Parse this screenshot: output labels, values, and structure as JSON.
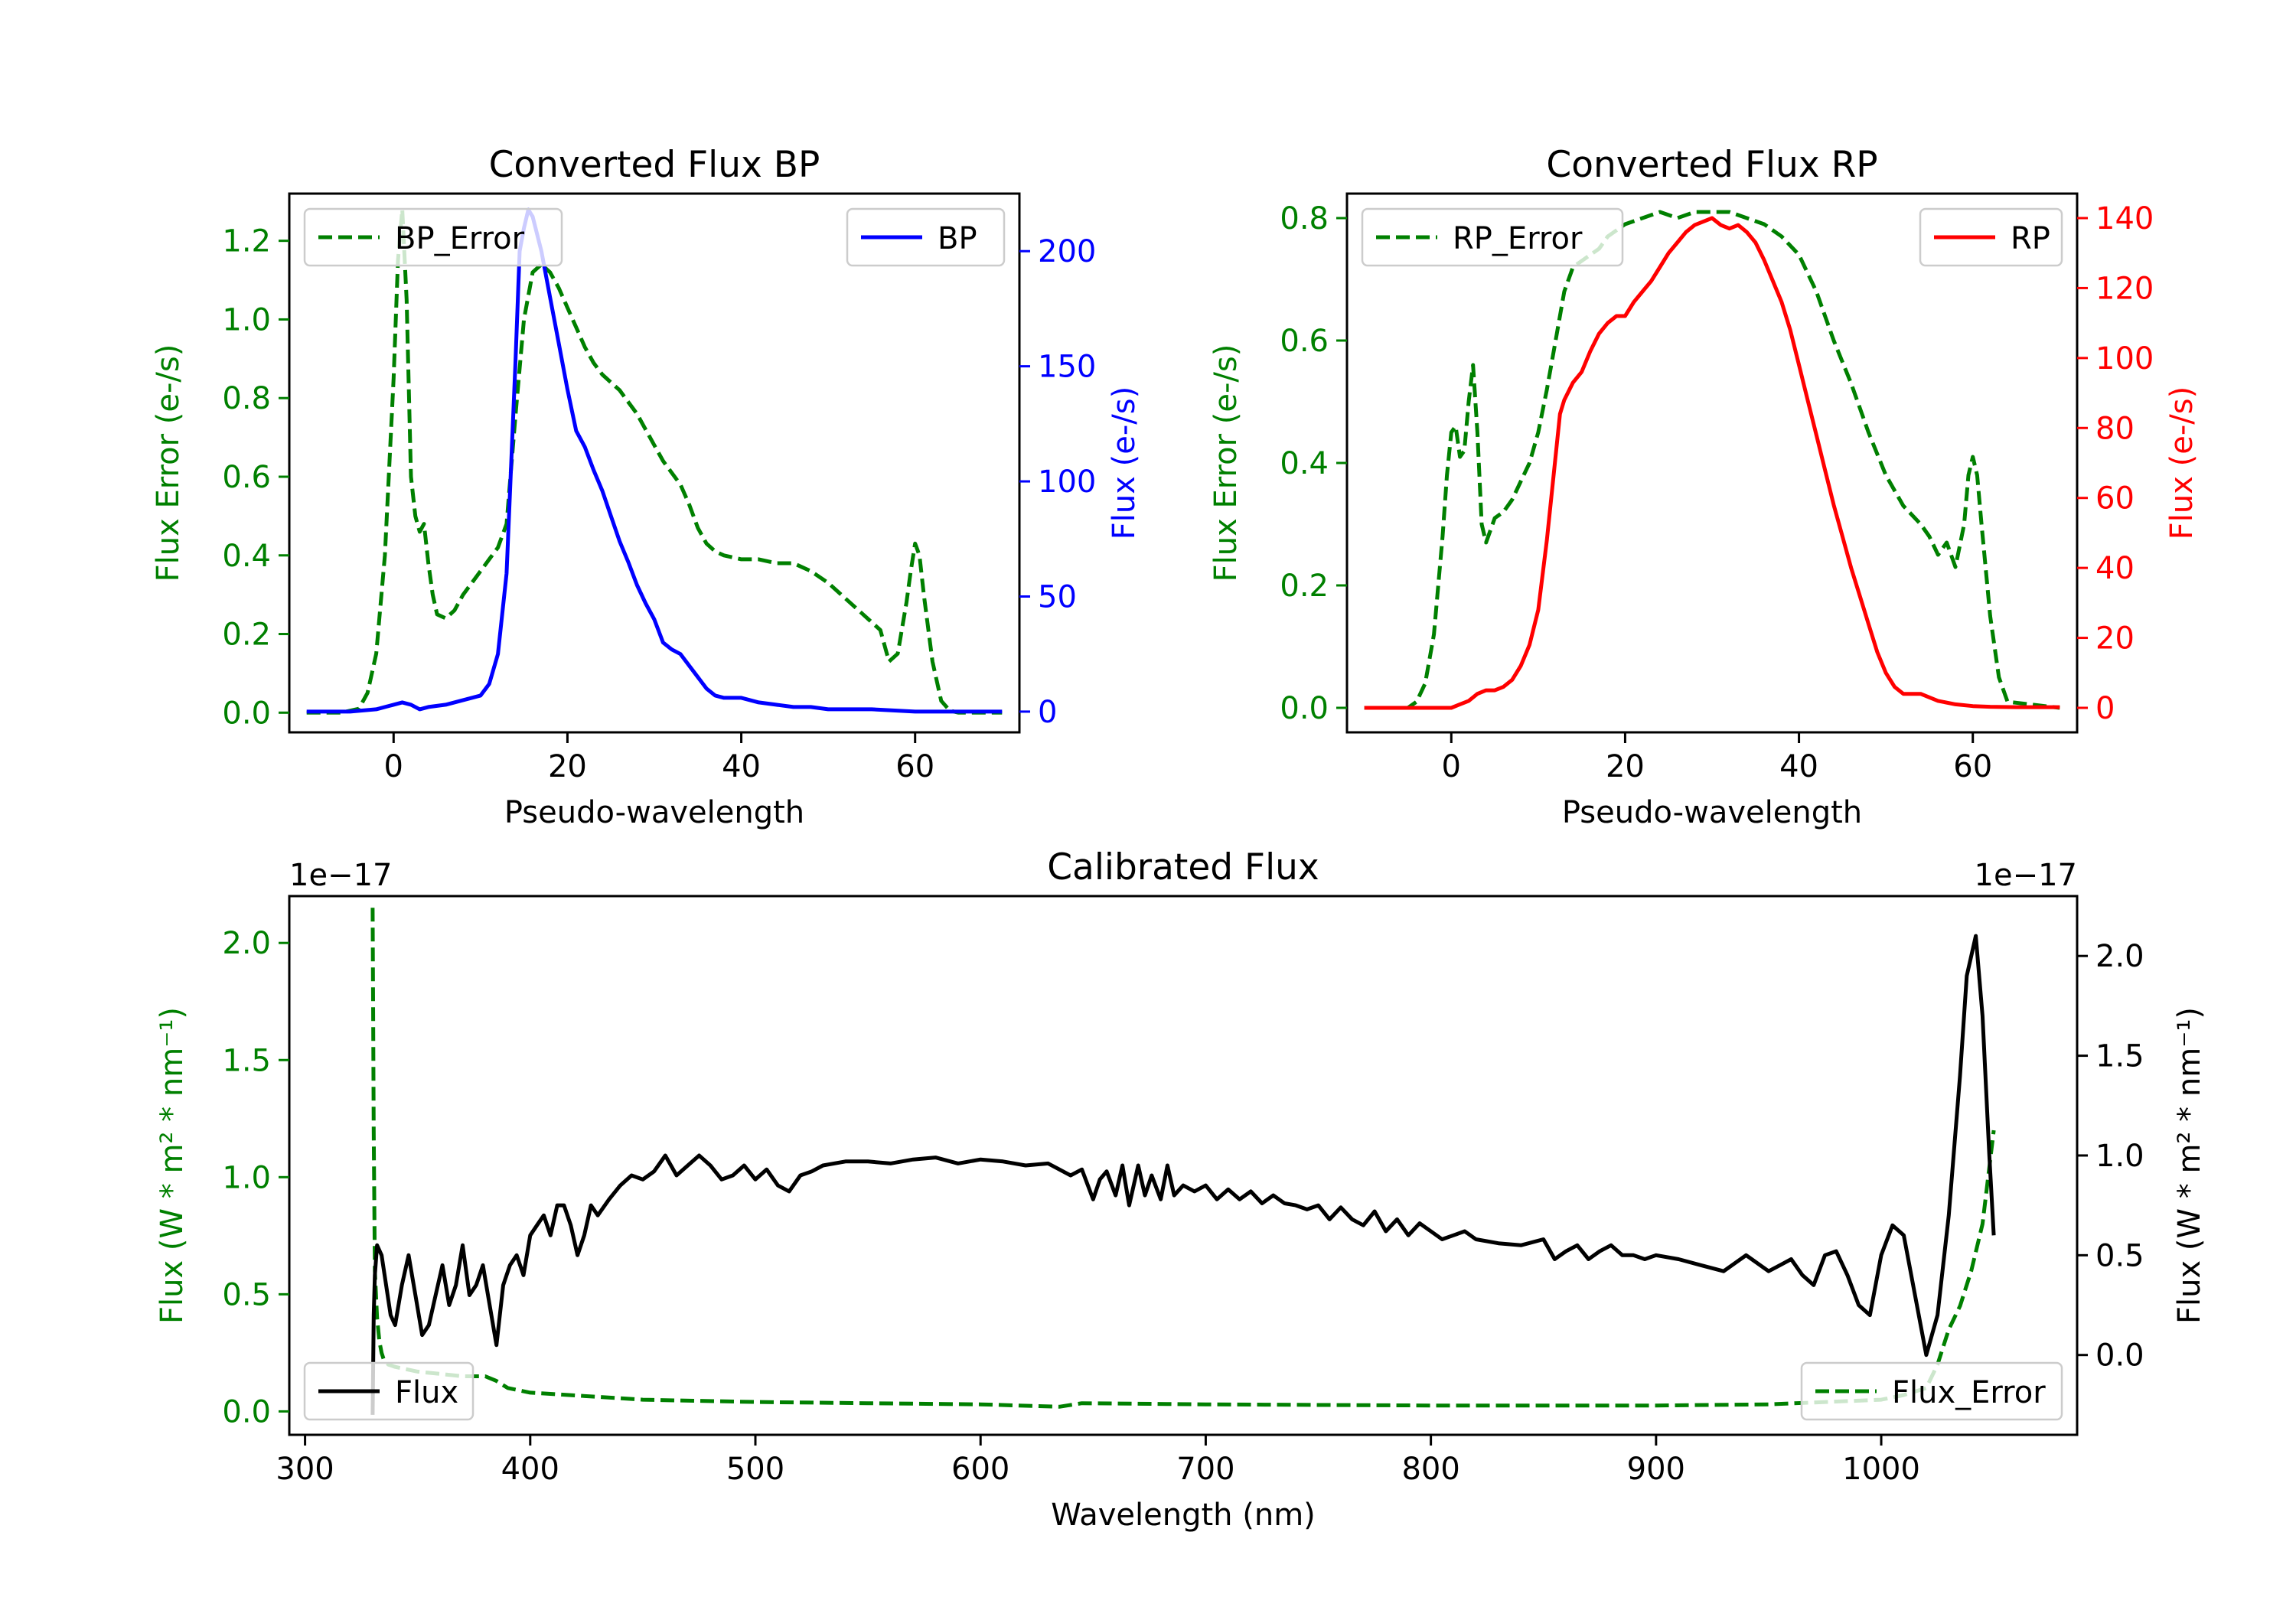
{
  "chart_data": [
    {
      "type": "line",
      "title": "Converted Flux BP",
      "xlabel": "Pseudo-wavelength",
      "ylabel_left": "Flux Error (e-/s)",
      "ylabel_right": "Flux (e-/s)",
      "xlim": [
        -12,
        72
      ],
      "ylim_left": [
        -0.05,
        1.32
      ],
      "ylim_right": [
        -9,
        225
      ],
      "xticks": [
        "0",
        "20",
        "40",
        "60"
      ],
      "yticks_left": [
        "0.0",
        "0.2",
        "0.4",
        "0.6",
        "0.8",
        "1.0",
        "1.2"
      ],
      "yticks_right": [
        "0",
        "50",
        "100",
        "150",
        "200"
      ],
      "legend_left": "BP_Error",
      "legend_right": "BP",
      "colors": {
        "error": "#008000",
        "flux": "#0000ff",
        "left_axis": "#008000",
        "right_axis": "#0000ff"
      },
      "series": [
        {
          "name": "BP_Error",
          "axis": "left",
          "style": "dashed",
          "x": [
            -10,
            -6,
            -4,
            -3,
            -2,
            -1,
            0,
            0.5,
            1,
            1.5,
            2,
            2.5,
            3,
            3.5,
            4,
            4.5,
            5,
            6,
            7,
            8,
            9,
            10,
            11,
            12,
            13,
            14,
            15,
            16,
            17,
            18,
            19,
            20,
            21,
            22,
            23,
            24,
            25,
            26,
            27,
            28,
            29,
            30,
            31,
            32,
            33,
            34,
            35,
            36,
            37,
            38,
            40,
            42,
            44,
            46,
            47,
            48,
            50,
            52,
            54,
            56,
            57,
            58,
            59,
            59.5,
            60,
            60.5,
            61,
            62,
            63,
            64,
            65,
            70
          ],
          "y": [
            0.0,
            0.0,
            0.01,
            0.05,
            0.15,
            0.4,
            0.85,
            1.15,
            1.28,
            1.05,
            0.6,
            0.5,
            0.46,
            0.48,
            0.38,
            0.3,
            0.25,
            0.24,
            0.26,
            0.3,
            0.33,
            0.36,
            0.39,
            0.42,
            0.48,
            0.75,
            1.0,
            1.12,
            1.14,
            1.12,
            1.08,
            1.03,
            0.98,
            0.93,
            0.89,
            0.86,
            0.84,
            0.82,
            0.79,
            0.76,
            0.72,
            0.68,
            0.64,
            0.61,
            0.58,
            0.53,
            0.47,
            0.43,
            0.41,
            0.4,
            0.39,
            0.39,
            0.38,
            0.38,
            0.37,
            0.36,
            0.33,
            0.29,
            0.25,
            0.21,
            0.13,
            0.15,
            0.28,
            0.36,
            0.43,
            0.4,
            0.3,
            0.13,
            0.03,
            0.005,
            0.0,
            0.0
          ]
        },
        {
          "name": "BP",
          "axis": "right",
          "style": "solid",
          "x": [
            -10,
            -5,
            -2,
            0,
            1,
            2,
            3,
            4,
            6,
            8,
            10,
            11,
            12,
            13,
            14,
            14.5,
            15,
            15.5,
            16,
            17,
            18,
            19,
            20,
            21,
            22,
            23,
            24,
            25,
            26,
            27,
            28,
            29,
            30,
            31,
            32,
            33,
            34,
            35,
            36,
            37,
            38,
            40,
            42,
            44,
            46,
            48,
            50,
            55,
            60,
            65,
            70
          ],
          "y": [
            0,
            0,
            1,
            3,
            4,
            3,
            1,
            2,
            3,
            5,
            7,
            12,
            25,
            60,
            150,
            200,
            210,
            218,
            215,
            200,
            180,
            160,
            140,
            122,
            115,
            105,
            96,
            85,
            74,
            65,
            55,
            47,
            40,
            30,
            27,
            25,
            20,
            15,
            10,
            7,
            6,
            6,
            4,
            3,
            2,
            2,
            1,
            1,
            0,
            0,
            0
          ]
        }
      ]
    },
    {
      "type": "line",
      "title": "Converted Flux RP",
      "xlabel": "Pseudo-wavelength",
      "ylabel_left": "Flux Error (e-/s)",
      "ylabel_right": "Flux (e-/s)",
      "xlim": [
        -12,
        72
      ],
      "ylim_left": [
        -0.04,
        0.84
      ],
      "ylim_right": [
        -7,
        147
      ],
      "xticks": [
        "0",
        "20",
        "40",
        "60"
      ],
      "yticks_left": [
        "0.0",
        "0.2",
        "0.4",
        "0.6",
        "0.8"
      ],
      "yticks_right": [
        "0",
        "20",
        "40",
        "60",
        "80",
        "100",
        "120",
        "140"
      ],
      "legend_left": "RP_Error",
      "legend_right": "RP",
      "colors": {
        "error": "#008000",
        "flux": "#ff0000",
        "left_axis": "#008000",
        "right_axis": "#ff0000"
      },
      "series": [
        {
          "name": "RP_Error",
          "axis": "left",
          "style": "dashed",
          "x": [
            -10,
            -5,
            -4,
            -3,
            -2,
            -1,
            -0.5,
            0,
            0.5,
            1,
            1.5,
            2,
            2.5,
            3,
            3.5,
            4,
            5,
            6,
            7,
            8,
            9,
            10,
            11,
            12,
            13,
            14,
            15,
            16,
            17,
            18,
            19,
            20,
            22,
            24,
            26,
            28,
            30,
            32,
            34,
            36,
            38,
            40,
            42,
            44,
            46,
            48,
            50,
            52,
            54,
            55,
            56,
            57,
            58,
            59,
            59.5,
            60,
            60.5,
            61,
            62,
            63,
            64,
            70
          ],
          "y": [
            0.0,
            0.0,
            0.01,
            0.04,
            0.12,
            0.28,
            0.38,
            0.45,
            0.46,
            0.41,
            0.42,
            0.5,
            0.56,
            0.45,
            0.3,
            0.27,
            0.31,
            0.32,
            0.34,
            0.37,
            0.4,
            0.45,
            0.52,
            0.6,
            0.68,
            0.72,
            0.73,
            0.74,
            0.75,
            0.77,
            0.78,
            0.79,
            0.8,
            0.81,
            0.8,
            0.81,
            0.81,
            0.81,
            0.8,
            0.79,
            0.77,
            0.74,
            0.68,
            0.6,
            0.53,
            0.45,
            0.38,
            0.33,
            0.3,
            0.28,
            0.25,
            0.27,
            0.23,
            0.3,
            0.38,
            0.41,
            0.38,
            0.3,
            0.15,
            0.05,
            0.01,
            0.0
          ]
        },
        {
          "name": "RP",
          "axis": "right",
          "style": "solid",
          "x": [
            -10,
            -2,
            0,
            1,
            2,
            3,
            4,
            5,
            6,
            7,
            8,
            9,
            10,
            11,
            12,
            12.5,
            13,
            14,
            15,
            16,
            17,
            18,
            19,
            20,
            21,
            22,
            23,
            24,
            25,
            26,
            27,
            28,
            29,
            30,
            31,
            32,
            33,
            34,
            35,
            36,
            37,
            38,
            39,
            40,
            41,
            42,
            43,
            44,
            45,
            46,
            47,
            48,
            49,
            50,
            51,
            52,
            53,
            54,
            55,
            56,
            58,
            60,
            62,
            65,
            70
          ],
          "y": [
            0,
            0,
            0,
            1,
            2,
            4,
            5,
            5,
            6,
            8,
            12,
            18,
            28,
            48,
            72,
            84,
            88,
            93,
            96,
            102,
            107,
            110,
            112,
            112,
            116,
            119,
            122,
            126,
            130,
            133,
            136,
            138,
            139,
            140,
            138,
            137,
            138,
            136,
            133,
            128,
            122,
            116,
            108,
            98,
            88,
            78,
            68,
            58,
            49,
            40,
            32,
            24,
            16,
            10,
            6,
            4,
            4,
            4,
            3,
            2,
            1,
            0.5,
            0.3,
            0.2,
            0.2
          ]
        }
      ]
    },
    {
      "type": "line",
      "title": "Calibrated Flux",
      "xlabel": "Wavelength (nm)",
      "ylabel_left": "Flux (W * m² * nm⁻¹)",
      "ylabel_right": "Flux (W * m² * nm⁻¹)",
      "offset_left": "1e−17",
      "offset_right": "1e−17",
      "xlim": [
        293,
        1087
      ],
      "ylim_left": [
        -0.1,
        2.2
      ],
      "ylim_right": [
        -0.4,
        2.3
      ],
      "xticks": [
        "300",
        "400",
        "500",
        "600",
        "700",
        "800",
        "900",
        "1000"
      ],
      "yticks_left": [
        "0.0",
        "0.5",
        "1.0",
        "1.5",
        "2.0"
      ],
      "yticks_right": [
        "0.0",
        "0.5",
        "1.0",
        "1.5",
        "2.0"
      ],
      "legend_left": "Flux",
      "legend_right": "Flux_Error",
      "colors": {
        "error": "#008000",
        "flux": "#000000",
        "left_axis": "#008000",
        "right_axis": "#000000"
      },
      "series": [
        {
          "name": "Flux_Error",
          "axis": "left",
          "style": "dashed",
          "x": [
            330,
            330.5,
            331,
            332,
            333,
            334,
            335,
            337,
            340,
            345,
            350,
            360,
            370,
            380,
            385,
            390,
            400,
            450,
            500,
            550,
            600,
            635,
            645,
            700,
            800,
            900,
            950,
            1000,
            1010,
            1020,
            1025,
            1030,
            1035,
            1040,
            1045,
            1050
          ],
          "y": [
            2.15,
            1.2,
            0.6,
            0.4,
            0.3,
            0.25,
            0.22,
            0.2,
            0.19,
            0.18,
            0.17,
            0.16,
            0.15,
            0.15,
            0.13,
            0.1,
            0.08,
            0.05,
            0.04,
            0.035,
            0.03,
            0.02,
            0.035,
            0.03,
            0.025,
            0.025,
            0.03,
            0.05,
            0.07,
            0.1,
            0.2,
            0.35,
            0.45,
            0.6,
            0.8,
            1.2
          ]
        },
        {
          "name": "Flux",
          "axis": "right",
          "style": "solid",
          "x": [
            330,
            330.5,
            331,
            332,
            334,
            336,
            338,
            340,
            343,
            346,
            349,
            352,
            355,
            358,
            361,
            364,
            367,
            370,
            373,
            376,
            379,
            382,
            385,
            388,
            391,
            394,
            397,
            400,
            403,
            406,
            409,
            412,
            415,
            418,
            421,
            424,
            427,
            430,
            435,
            440,
            445,
            450,
            455,
            460,
            465,
            470,
            475,
            480,
            485,
            490,
            495,
            500,
            505,
            510,
            515,
            520,
            525,
            530,
            540,
            550,
            560,
            570,
            580,
            590,
            600,
            610,
            620,
            630,
            640,
            645,
            650,
            653,
            656,
            660,
            663,
            666,
            670,
            673,
            676,
            680,
            683,
            686,
            690,
            695,
            700,
            705,
            710,
            715,
            720,
            725,
            730,
            735,
            740,
            745,
            750,
            755,
            760,
            765,
            770,
            775,
            780,
            785,
            790,
            795,
            800,
            805,
            810,
            815,
            820,
            830,
            840,
            850,
            855,
            860,
            865,
            870,
            875,
            880,
            885,
            890,
            895,
            900,
            910,
            920,
            930,
            940,
            950,
            955,
            960,
            965,
            970,
            975,
            980,
            985,
            990,
            995,
            1000,
            1005,
            1010,
            1015,
            1020,
            1025,
            1030,
            1035,
            1038,
            1042,
            1045,
            1048,
            1050
          ],
          "y": [
            -0.3,
            0.2,
            0.4,
            0.55,
            0.5,
            0.35,
            0.2,
            0.15,
            0.35,
            0.5,
            0.3,
            0.1,
            0.15,
            0.3,
            0.45,
            0.25,
            0.35,
            0.55,
            0.3,
            0.35,
            0.45,
            0.25,
            0.05,
            0.35,
            0.45,
            0.5,
            0.4,
            0.6,
            0.65,
            0.7,
            0.6,
            0.75,
            0.75,
            0.65,
            0.5,
            0.6,
            0.75,
            0.7,
            0.78,
            0.85,
            0.9,
            0.88,
            0.92,
            1.0,
            0.9,
            0.95,
            1.0,
            0.95,
            0.88,
            0.9,
            0.95,
            0.88,
            0.93,
            0.85,
            0.82,
            0.9,
            0.92,
            0.95,
            0.97,
            0.97,
            0.96,
            0.98,
            0.99,
            0.96,
            0.98,
            0.97,
            0.95,
            0.96,
            0.9,
            0.93,
            0.78,
            0.88,
            0.92,
            0.8,
            0.95,
            0.75,
            0.95,
            0.8,
            0.9,
            0.78,
            0.95,
            0.8,
            0.85,
            0.82,
            0.85,
            0.78,
            0.83,
            0.78,
            0.82,
            0.76,
            0.8,
            0.76,
            0.75,
            0.73,
            0.75,
            0.68,
            0.74,
            0.68,
            0.65,
            0.72,
            0.62,
            0.68,
            0.6,
            0.66,
            0.62,
            0.58,
            0.6,
            0.62,
            0.58,
            0.56,
            0.55,
            0.58,
            0.48,
            0.52,
            0.55,
            0.48,
            0.52,
            0.55,
            0.5,
            0.5,
            0.48,
            0.5,
            0.48,
            0.45,
            0.42,
            0.5,
            0.42,
            0.45,
            0.48,
            0.4,
            0.35,
            0.5,
            0.52,
            0.4,
            0.25,
            0.2,
            0.5,
            0.65,
            0.6,
            0.3,
            0.0,
            0.2,
            0.7,
            1.4,
            1.9,
            2.1,
            1.7,
            1.0,
            0.6
          ]
        }
      ]
    }
  ]
}
